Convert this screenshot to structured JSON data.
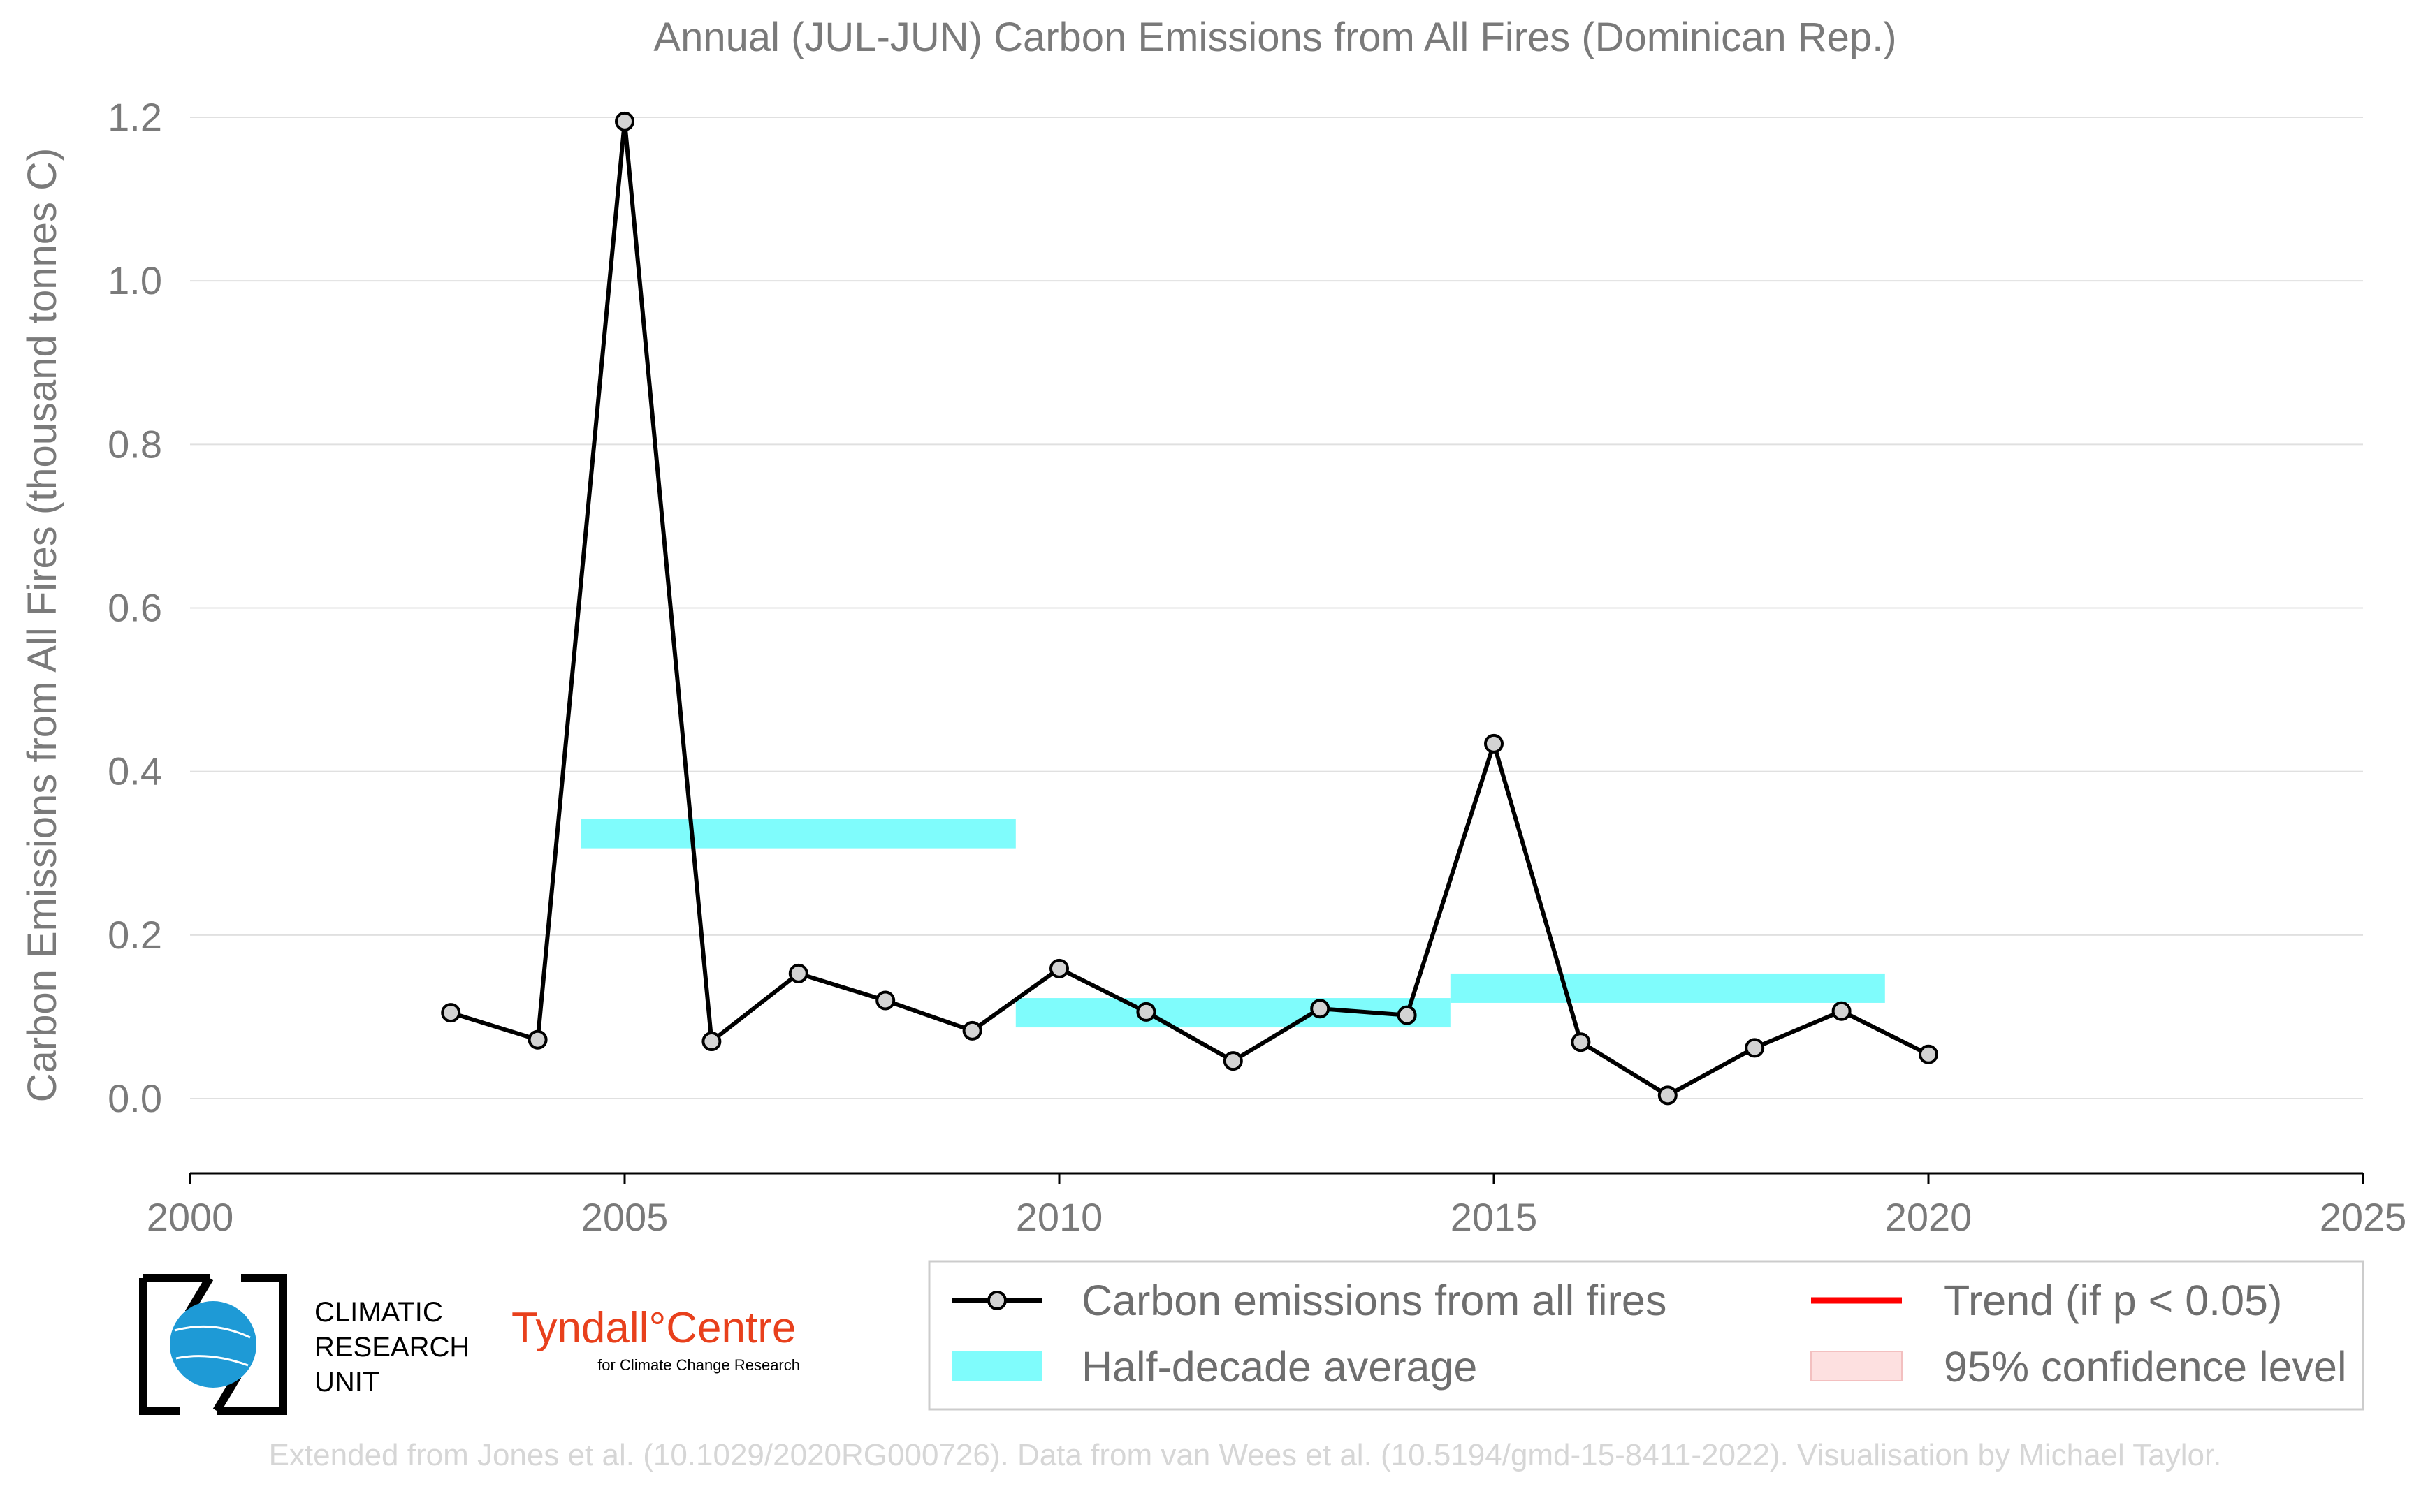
{
  "chart_data": {
    "type": "line",
    "title": "Annual (JUL-JUN) Carbon Emissions from All Fires (Dominican Rep.)",
    "xlabel": "",
    "ylabel": "Carbon Emissions from All Fires (thousand tonnes C)",
    "xlim": [
      2000,
      2025
    ],
    "ylim": [
      -0.09,
      1.22
    ],
    "xticks": [
      2000,
      2005,
      2010,
      2015,
      2020,
      2025
    ],
    "yticks": [
      0.0,
      0.2,
      0.4,
      0.6,
      0.8,
      1.0,
      1.2
    ],
    "xtick_labels": [
      "2000",
      "2005",
      "2010",
      "2015",
      "2020",
      "2025"
    ],
    "ytick_labels": [
      "0.0",
      "0.2",
      "0.4",
      "0.6",
      "0.8",
      "1.0",
      "1.2"
    ],
    "grid": "horizontal",
    "series": [
      {
        "name": "Carbon emissions from all fires",
        "color": "#000000",
        "marker_fill": "#d3d3d3",
        "x": [
          2003,
          2004,
          2005,
          2006,
          2007,
          2008,
          2009,
          2010,
          2011,
          2012,
          2013,
          2014,
          2015,
          2016,
          2017,
          2018,
          2019,
          2020
        ],
        "y": [
          0.105,
          0.072,
          1.195,
          0.07,
          0.153,
          0.12,
          0.083,
          0.159,
          0.106,
          0.046,
          0.11,
          0.102,
          0.434,
          0.069,
          0.004,
          0.062,
          0.107,
          0.054
        ]
      }
    ],
    "half_decade_averages": {
      "name": "Half-decade average",
      "color": "#7ffcfc",
      "segments": [
        {
          "x_start": 2004.5,
          "x_end": 2009.5,
          "value": 0.324
        },
        {
          "x_start": 2009.5,
          "x_end": 2014.5,
          "value": 0.105
        },
        {
          "x_start": 2014.5,
          "x_end": 2019.5,
          "value": 0.135
        }
      ]
    },
    "legend": {
      "placement": "bottom-right",
      "entries": [
        {
          "label": "Carbon emissions from all fires",
          "kind": "line-marker",
          "color": "#000000"
        },
        {
          "label": "Trend (if p < 0.05)",
          "kind": "line",
          "color": "#ff0000"
        },
        {
          "label": "Half-decade average",
          "kind": "band",
          "color": "#7ffcfc"
        },
        {
          "label": "95% confidence level",
          "kind": "patch",
          "color": "#fde0e0"
        }
      ]
    }
  },
  "logos": {
    "cru_lines": [
      "CLIMATIC",
      "RESEARCH",
      "UNIT"
    ],
    "tyndall_main": "Tyndall°Centre",
    "tyndall_sub": "for Climate Change Research"
  },
  "credit": "Extended from Jones et al. (10.1029/2020RG000726). Data from van Wees et al. (10.5194/gmd-15-8411-2022). Visualisation by Michael Taylor."
}
